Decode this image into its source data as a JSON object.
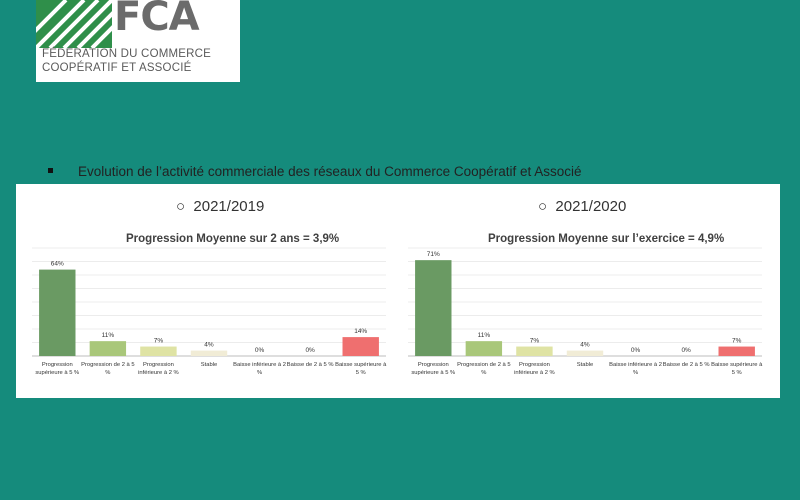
{
  "logo": {
    "mark": "FCA",
    "line1": "FÉDÉRATION DU COMMERCE",
    "line2": "COOPÉRATIF ET ASSOCIÉ"
  },
  "heading": "Evolution de l’activité commerciale des réseaux du Commerce Coopératif et Associé",
  "colors": {
    "background": "#158b7c",
    "dark_green": "#6a9a63",
    "light_green": "#a9c77a",
    "pale_yellow": "#dfe3a4",
    "beige": "#f1ecd6",
    "red": "#ef6f6f"
  },
  "chart_data": [
    {
      "type": "bar",
      "period_label": "2021/2019",
      "title": "Progression Moyenne sur 2 ans = 3,9%",
      "categories": [
        "Progression supérieure à 5 %",
        "Progression de 2 à 5 %",
        "Progression inférieure à 2 %",
        "Stable",
        "Baisse inférieure à 2 %",
        "Baisse de 2 à 5 %",
        "Baisse supérieure à 5 %"
      ],
      "values": [
        64,
        11,
        7,
        4,
        0,
        0,
        14
      ],
      "value_labels": [
        "64%",
        "11%",
        "7%",
        "4%",
        "0%",
        "0%",
        "14%"
      ],
      "ylim": [
        0,
        80
      ],
      "grid": true
    },
    {
      "type": "bar",
      "period_label": "2021/2020",
      "title": "Progression Moyenne sur l’exercice = 4,9%",
      "categories": [
        "Progression supérieure à 5 %",
        "Progression de 2 à 5 %",
        "Progression inférieure à 2 %",
        "Stable",
        "Baisse inférieure à 2 %",
        "Baisse de 2 à 5 %",
        "Baisse supérieure à 5 %"
      ],
      "values": [
        71,
        11,
        7,
        4,
        0,
        0,
        7
      ],
      "value_labels": [
        "71%",
        "11%",
        "7%",
        "4%",
        "0%",
        "0%",
        "7%"
      ],
      "ylim": [
        0,
        80
      ],
      "grid": true
    }
  ]
}
